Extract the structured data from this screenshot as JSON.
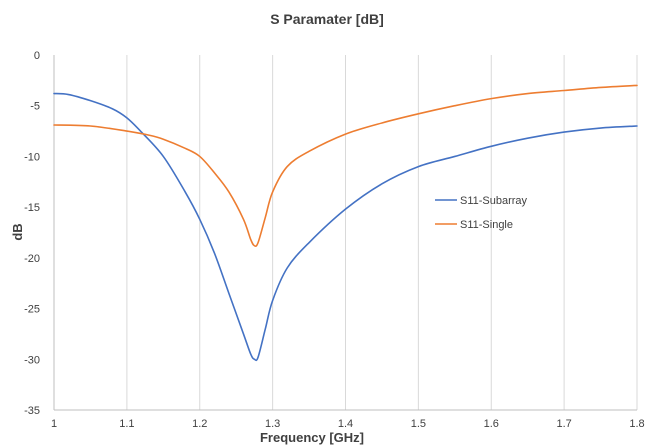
{
  "chart_data": {
    "type": "line",
    "title": "S Paramater [dB]",
    "xlabel": "Frequency [GHz]",
    "ylabel": "dB",
    "xlim": [
      1,
      1.8
    ],
    "ylim": [
      -35,
      0
    ],
    "x_ticks": [
      "1",
      "1.1",
      "1.2",
      "1.3",
      "1.4",
      "1.5",
      "1.6",
      "1.7",
      "1.8"
    ],
    "y_ticks": [
      "0",
      "-5",
      "-10",
      "-15",
      "-20",
      "-25",
      "-30",
      "-35"
    ],
    "grid": "vertical",
    "legend_position": "center-right",
    "series": [
      {
        "name": "S11-Subarray",
        "color": "#4472C4",
        "x": [
          1.0,
          1.02,
          1.05,
          1.08,
          1.1,
          1.12,
          1.15,
          1.18,
          1.2,
          1.22,
          1.24,
          1.26,
          1.27,
          1.275,
          1.28,
          1.29,
          1.3,
          1.32,
          1.35,
          1.4,
          1.45,
          1.5,
          1.55,
          1.6,
          1.65,
          1.7,
          1.75,
          1.8
        ],
        "y": [
          -3.8,
          -3.9,
          -4.5,
          -5.3,
          -6.2,
          -7.6,
          -10.0,
          -13.5,
          -16.2,
          -19.5,
          -23.5,
          -27.5,
          -29.5,
          -30.0,
          -29.8,
          -27.0,
          -24.2,
          -21.0,
          -18.5,
          -15.2,
          -12.7,
          -11.0,
          -10.0,
          -9.0,
          -8.2,
          -7.6,
          -7.2,
          -7.0
        ]
      },
      {
        "name": "S11-Single",
        "color": "#ED7D31",
        "x": [
          1.0,
          1.05,
          1.1,
          1.13,
          1.15,
          1.18,
          1.2,
          1.22,
          1.24,
          1.26,
          1.27,
          1.275,
          1.28,
          1.29,
          1.3,
          1.32,
          1.35,
          1.4,
          1.45,
          1.5,
          1.55,
          1.6,
          1.65,
          1.7,
          1.75,
          1.8
        ],
        "y": [
          -6.9,
          -7.0,
          -7.5,
          -7.9,
          -8.3,
          -9.2,
          -10.0,
          -11.6,
          -13.5,
          -16.2,
          -18.2,
          -18.8,
          -18.5,
          -16.0,
          -13.5,
          -11.0,
          -9.5,
          -7.8,
          -6.7,
          -5.8,
          -5.0,
          -4.3,
          -3.8,
          -3.5,
          -3.2,
          -3.0
        ]
      }
    ]
  }
}
